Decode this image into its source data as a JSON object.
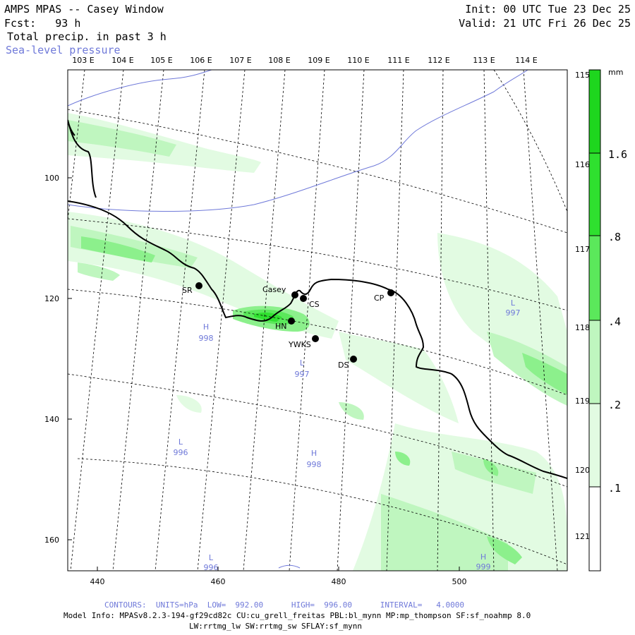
{
  "header": {
    "title": "AMPS MPAS -- Casey Window",
    "forecast": "Fcst:   93 h",
    "field1": "Total precip. in past 3 h",
    "field2": "Sea-level pressure",
    "init": "Init: 00 UTC Tue 23 Dec 25",
    "valid": "Valid: 21 UTC Fri 26 Dec 25"
  },
  "lon_top_labels": [
    "103 E",
    "104 E",
    "105 E",
    "106 E",
    "107 E",
    "108 E",
    "109 E",
    "110 E",
    "111 E",
    "112 E",
    "113 E",
    "114 E"
  ],
  "lon_right_labels": [
    "115 E",
    "116 E",
    "117 E",
    "118 E",
    "119 E",
    "120 E",
    "121 E"
  ],
  "y_axis_ticks": [
    "100",
    "120",
    "140",
    "160"
  ],
  "x_axis_ticks": [
    "440",
    "460",
    "480",
    "500"
  ],
  "colorbar": {
    "unit": "mm",
    "labels": [
      "1.6",
      ".8",
      ".4",
      ".2",
      ".1"
    ],
    "colors": [
      "#1ed61e",
      "#2fe02f",
      "#5be85b",
      "#8cf08c",
      "#bff6bf",
      "#e2fbe2",
      "#ffffff"
    ]
  },
  "stations": [
    {
      "name": "SR"
    },
    {
      "name": "Casey"
    },
    {
      "name": "CS"
    },
    {
      "name": "CP"
    },
    {
      "name": "HN"
    },
    {
      "name": "YWKS"
    },
    {
      "name": "DS"
    }
  ],
  "pressure_centers": [
    {
      "type": "H",
      "value": "998"
    },
    {
      "type": "L",
      "value": "997"
    },
    {
      "type": "L",
      "value": "997"
    },
    {
      "type": "L",
      "value": "996"
    },
    {
      "type": "H",
      "value": "998"
    },
    {
      "type": "L",
      "value": "996"
    },
    {
      "type": "H",
      "value": "999"
    }
  ],
  "footer": {
    "contours": "CONTOURS:  UNITS=hPa  LOW=  992.00      HIGH=  996.00      INTERVAL=   4.0000",
    "model_info": "Model Info: MPASv8.2.3-194-gf29cd82c CU:cu_grell_freitas PBL:bl_mynn MP:mp_thompson SF:sf_noahmp 8.0",
    "model_info2": "LW:rrtmg_lw SW:rrtmg_sw SFLAY:sf_mynn"
  },
  "colors": {
    "coast": "#000000",
    "isobar": "#6f79d9",
    "graticule": "#000000"
  }
}
